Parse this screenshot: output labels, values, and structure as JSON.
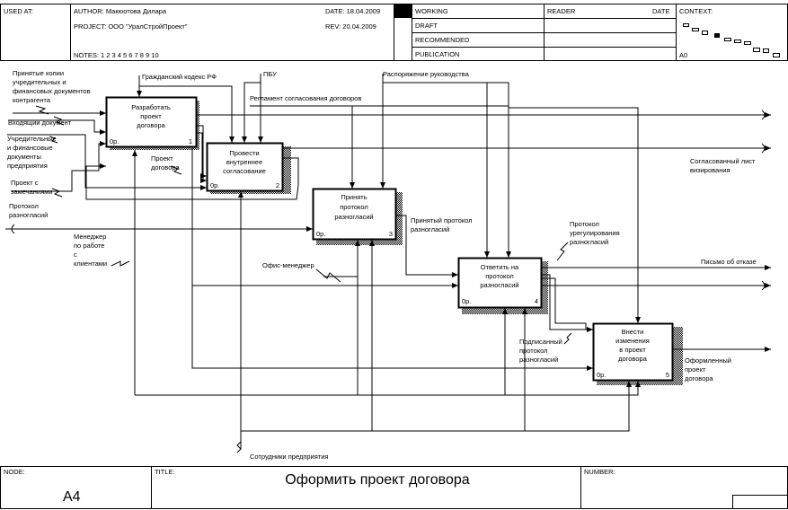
{
  "header": {
    "used_at": "USED AT:",
    "author": "AUTHOR:  Макюотова Дилара",
    "project": "PROJECT:  ООО \"УралСтройПроект\"",
    "date": "DATE:  18.04.2009",
    "rev": "REV:   20.04.2009",
    "notes": "NOTES:  1  2  3  4  5  6  7  8  9  10",
    "status": {
      "working": "WORKING",
      "draft": "DRAFT",
      "recommended": "RECOMMENDED",
      "publication": "PUBLICATION"
    },
    "reader": "READER",
    "date_col": "DATE",
    "context": "CONTEXT:",
    "context_node": "A0"
  },
  "boxes": [
    {
      "id": "box1",
      "lines": [
        "Разработать",
        "проект",
        "договора"
      ],
      "cost": "0р.",
      "num": "1"
    },
    {
      "id": "box2",
      "lines": [
        "Провести",
        "внутреннее",
        "согласование"
      ],
      "cost": "0р.",
      "num": "2"
    },
    {
      "id": "box3",
      "lines": [
        "Принять",
        "протокол",
        "разногласий"
      ],
      "cost": "0р.",
      "num": "3"
    },
    {
      "id": "box4",
      "lines": [
        "Ответить на",
        "протокол",
        "разногласий"
      ],
      "cost": "0р.",
      "num": "4"
    },
    {
      "id": "box5",
      "lines": [
        "Внести",
        "изменения",
        "в проект",
        "договора"
      ],
      "cost": "0р.",
      "num": "5"
    }
  ],
  "labels": {
    "in1": [
      "Принятые копии",
      "учредительных и",
      "финансовых документов",
      "контрагента"
    ],
    "in2": [
      "Входящий документ"
    ],
    "in3": [
      "Учредительные",
      "и финансовые",
      "документы",
      "предприятия"
    ],
    "in4": [
      "Проект с",
      "замечаниями"
    ],
    "in5": [
      "Протокол",
      "разногласий"
    ],
    "mech1": [
      "Менеджер",
      "по работе",
      "с",
      "клиентами"
    ],
    "ctrl1": [
      "Гражданский кодекс РФ"
    ],
    "ctrl2": [
      "ПБУ"
    ],
    "ctrl3": [
      "Распоряжение руководства"
    ],
    "ctrl4": [
      "Регламент согласования договоров"
    ],
    "out1": [
      "Согласованный лист",
      "визирования"
    ],
    "draft": [
      "Проект",
      "договора"
    ],
    "accepted": [
      "Принятый протокол",
      "разногласий"
    ],
    "settled": [
      "Протокол",
      "урегулирования",
      "разногласий"
    ],
    "refusal": [
      "Письмо об отказе"
    ],
    "signed": [
      "Подписанный",
      "протокол",
      "разногласий"
    ],
    "final": [
      "Оформленный",
      "проект",
      "договора"
    ],
    "office": [
      "Офис-менеджер"
    ],
    "staff": [
      "Сотрудники предприятия"
    ]
  },
  "footer": {
    "node_label": "NODE:",
    "node": "А4",
    "title_label": "TITLE:",
    "title": "Оформить проект договора",
    "number_label": "NUMBER:"
  }
}
